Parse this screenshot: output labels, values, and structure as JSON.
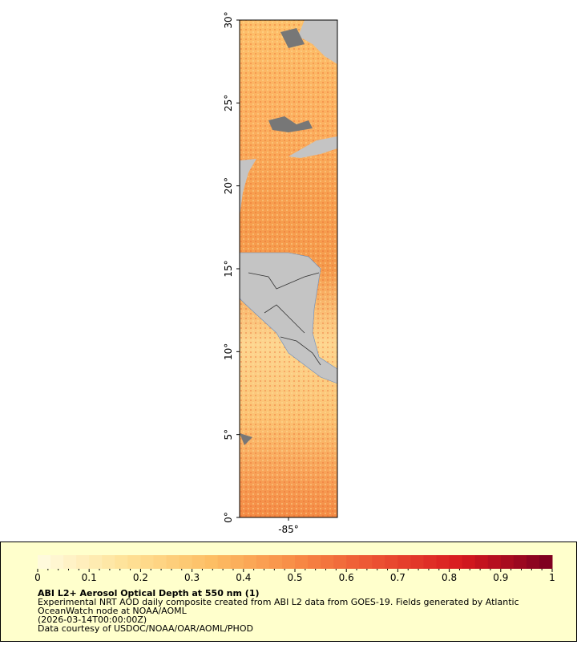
{
  "map": {
    "y_ticks": [
      "0°",
      "5°",
      "10°",
      "15°",
      "20°",
      "25°",
      "30°"
    ],
    "x_ticks": [
      "-85°"
    ],
    "legend": {
      "colorbar_ticks": [
        "0",
        "0.1",
        "0.2",
        "0.3",
        "0.4",
        "0.5",
        "0.6",
        "0.7",
        "0.8",
        "0.9",
        "1"
      ],
      "title": "ABI L2+ Aerosol Optical Depth at 550 nm (1)",
      "lines": [
        "Experimental NRT AOD daily composite created from ABI L2 data from GOES-19. Fields generated by Atlantic",
        "OceanWatch node at NOAA/AOML",
        "(2026-03-14T00:00:00Z)",
        "Data courtesy of USDOC/NOAA/OAR/AOML/PHOD"
      ]
    }
  }
}
